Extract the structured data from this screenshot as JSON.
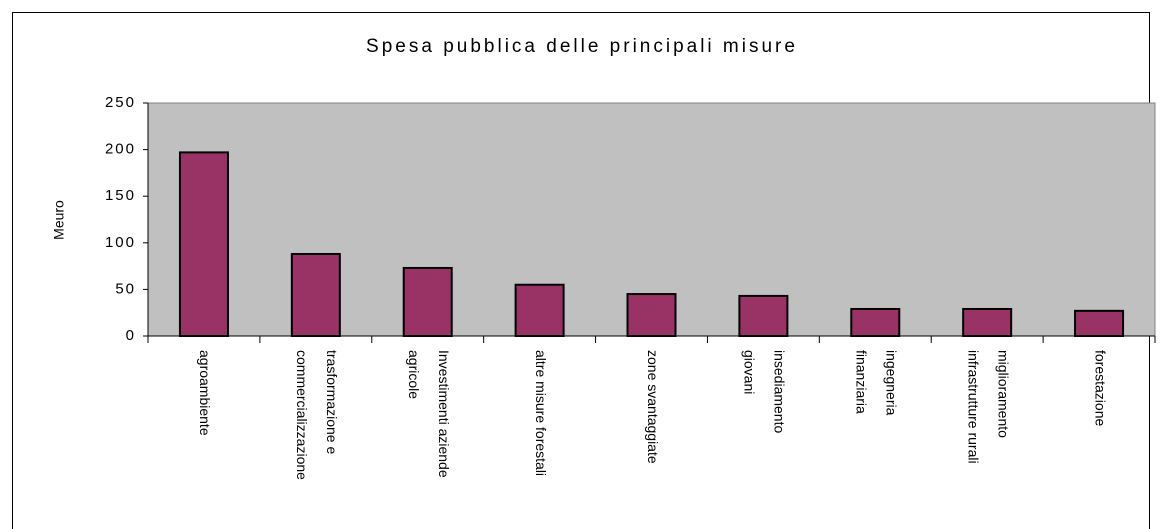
{
  "chart_data": {
    "type": "bar",
    "title": "Spesa pubblica delle principali misure",
    "y_label": "Meuro",
    "categories": [
      [
        "agroambiente"
      ],
      [
        "trasformazione e",
        "commercializzazione"
      ],
      [
        "Investimenti aziende",
        "agricole"
      ],
      [
        "altre misure forestali"
      ],
      [
        "zone svantaggiate"
      ],
      [
        "insediamento",
        "giovani"
      ],
      [
        "ingegneria",
        "finanziaria"
      ],
      [
        "miglioramento",
        "infrastrutture rurali"
      ],
      [
        "forestazione"
      ]
    ],
    "values": [
      197,
      88,
      73,
      55,
      45,
      43,
      29,
      29,
      27
    ],
    "color": "#993366",
    "ylim": [
      0,
      250
    ],
    "yticks": [
      0,
      50,
      100,
      150,
      200,
      250
    ],
    "grid": false
  }
}
